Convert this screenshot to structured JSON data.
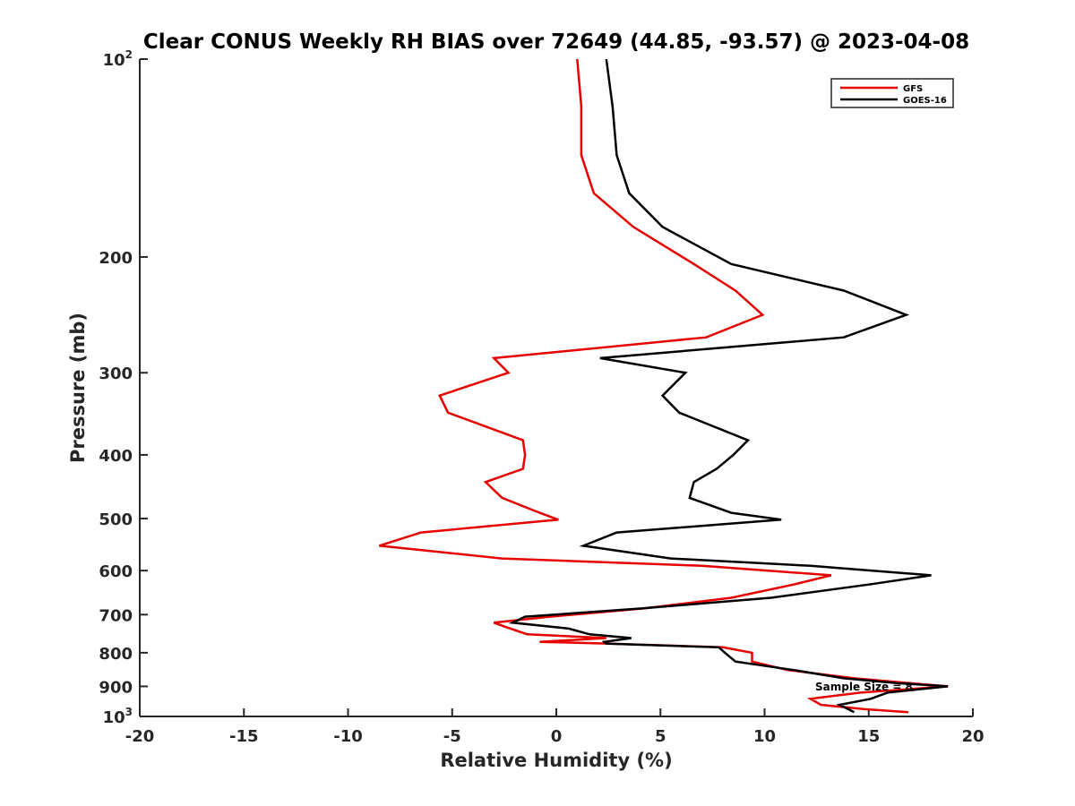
{
  "chart_data": {
    "type": "line",
    "title": "Clear CONUS Weekly RH BIAS over 72649 (44.85, -93.57) @ 2023-04-08",
    "xlabel": "Relative Humidity (%)",
    "ylabel": "Pressure (mb)",
    "xlim": [
      -20,
      20
    ],
    "ylim": [
      100,
      1000
    ],
    "y_scale": "log",
    "y_reversed": true,
    "grid": false,
    "legend_position": "top-right",
    "x_ticks": [
      {
        "value": -20,
        "label": "-20"
      },
      {
        "value": -15,
        "label": "-15"
      },
      {
        "value": -10,
        "label": "-10"
      },
      {
        "value": -5,
        "label": "-5"
      },
      {
        "value": 0,
        "label": "0"
      },
      {
        "value": 5,
        "label": "5"
      },
      {
        "value": 10,
        "label": "10"
      },
      {
        "value": 15,
        "label": "15"
      },
      {
        "value": 20,
        "label": "20"
      }
    ],
    "y_ticks": [
      {
        "value": 100,
        "label": "10",
        "sup": "2"
      },
      {
        "value": 200,
        "label": "200",
        "sup": ""
      },
      {
        "value": 300,
        "label": "300",
        "sup": ""
      },
      {
        "value": 400,
        "label": "400",
        "sup": ""
      },
      {
        "value": 500,
        "label": "500",
        "sup": ""
      },
      {
        "value": 600,
        "label": "600",
        "sup": ""
      },
      {
        "value": 700,
        "label": "700",
        "sup": ""
      },
      {
        "value": 800,
        "label": "800",
        "sup": ""
      },
      {
        "value": 900,
        "label": "900",
        "sup": ""
      },
      {
        "value": 1000,
        "label": "10",
        "sup": "3"
      }
    ],
    "series": [
      {
        "name": "GFS",
        "color": "#e60000",
        "x": [
          1.0,
          1.2,
          1.2,
          1.8,
          3.7,
          6.6,
          8.6,
          9.9,
          7.2,
          -3.0,
          -2.3,
          -5.6,
          -5.2,
          -1.6,
          -1.5,
          -1.6,
          -3.4,
          -2.6,
          -0.8,
          0.1,
          -6.5,
          -8.5,
          -2.6,
          7.0,
          13.2,
          11.4,
          8.4,
          4.2,
          -0.3,
          -3.0,
          -2.2,
          -1.4,
          2.4,
          -0.8,
          2.6,
          8.0,
          9.4,
          9.4,
          11.1,
          14.3,
          17.0,
          18.8,
          14.6,
          12.2,
          12.7,
          14.8,
          16.9
        ],
        "y": [
          100,
          118,
          140,
          160,
          180,
          205,
          225,
          245,
          265,
          285,
          300,
          325,
          345,
          380,
          400,
          420,
          440,
          465,
          490,
          502,
          525,
          550,
          575,
          590,
          610,
          630,
          660,
          685,
          705,
          720,
          735,
          750,
          760,
          770,
          775,
          785,
          800,
          825,
          850,
          875,
          890,
          900,
          920,
          940,
          960,
          975,
          985
        ]
      },
      {
        "name": "GOES-16",
        "color": "#000000",
        "x": [
          2.4,
          2.7,
          2.9,
          3.5,
          5.1,
          8.4,
          13.8,
          16.8,
          13.8,
          2.1,
          6.2,
          5.1,
          5.9,
          9.2,
          8.5,
          7.7,
          6.6,
          6.4,
          8.4,
          10.8,
          2.9,
          1.3,
          5.5,
          12.2,
          18.0,
          15.0,
          10.3,
          4.1,
          -1.5,
          -2.1,
          0.6,
          1.6,
          3.6,
          2.3,
          2.4,
          7.8,
          8.1,
          8.6,
          11.4,
          13.8,
          16.4,
          18.8,
          15.9,
          15.1,
          13.6,
          14.3
        ],
        "y": [
          100,
          118,
          140,
          160,
          180,
          205,
          225,
          245,
          265,
          285,
          300,
          325,
          345,
          380,
          400,
          420,
          440,
          465,
          490,
          502,
          525,
          550,
          575,
          590,
          610,
          630,
          660,
          685,
          705,
          720,
          735,
          750,
          760,
          770,
          775,
          785,
          800,
          825,
          850,
          875,
          890,
          900,
          920,
          940,
          960,
          985
        ]
      }
    ],
    "annotation": "Sample Size = 8"
  }
}
